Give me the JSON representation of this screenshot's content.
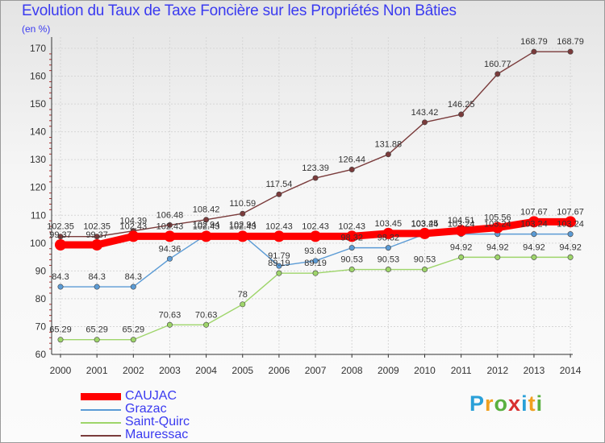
{
  "chart_data": {
    "type": "line",
    "title": "Evolution du Taux de Taxe Foncière sur les Propriétés Non Bâties",
    "ylabel": "(en %)",
    "xlabel": "",
    "ylim": [
      60,
      170
    ],
    "yticks": [
      "60",
      "70",
      "80",
      "90",
      "100",
      "110",
      "120",
      "130",
      "140",
      "150",
      "160",
      "170"
    ],
    "categories": [
      "2000",
      "2001",
      "2002",
      "2003",
      "2004",
      "2005",
      "2006",
      "2007",
      "2008",
      "2009",
      "2010",
      "2011",
      "2012",
      "2013",
      "2014"
    ],
    "grid": true,
    "series": [
      {
        "name": "CAUJAC",
        "color": "#ff0000",
        "values": [
          99.37,
          99.37,
          102.43,
          102.43,
          102.43,
          102.43,
          102.43,
          102.43,
          102.43,
          103.45,
          103.45,
          104.51,
          105.56,
          107.67,
          107.67
        ],
        "labels": [
          "99.37",
          "99.37",
          "102.43",
          "102.43",
          "102.43",
          "102.43",
          "102.43",
          "102.43",
          "102.43",
          "103.45",
          "103.45",
          "104.51",
          "105.56",
          "107.67",
          "107.67"
        ]
      },
      {
        "name": "Grazac",
        "color": "#5b9bd5",
        "values": [
          84.3,
          84.3,
          84.3,
          94.36,
          102.94,
          102.94,
          91.79,
          93.63,
          98.32,
          98.32,
          103.24,
          103.24,
          103.24,
          103.24,
          103.24
        ],
        "labels": [
          "84.3",
          "84.3",
          "84.3",
          "94.36",
          "102.94",
          "102.94",
          "91.79",
          "93.63",
          "98.32",
          "98.32",
          "103.24",
          "103.24",
          "103.24",
          "103.24",
          "103.24"
        ]
      },
      {
        "name": "Saint-Quirc",
        "color": "#9ed56a",
        "values": [
          65.29,
          65.29,
          65.29,
          70.63,
          70.63,
          78,
          89.19,
          89.19,
          90.53,
          90.53,
          90.53,
          94.92,
          94.92,
          94.92,
          94.92
        ],
        "labels": [
          "65.29",
          "65.29",
          "65.29",
          "70.63",
          "70.63",
          "78",
          "89.19",
          "89.19",
          "90.53",
          "90.53",
          "90.53",
          "94.92",
          "94.92",
          "94.92",
          "94.92"
        ]
      },
      {
        "name": "Mauressac",
        "color": "#7a3b3b",
        "values": [
          102.35,
          102.35,
          104.39,
          106.48,
          108.42,
          110.59,
          117.54,
          123.39,
          126.44,
          131.88,
          143.42,
          146.25,
          160.77,
          168.79,
          168.79
        ],
        "labels": [
          "102.35",
          "102.35",
          "104.39",
          "106.48",
          "108.42",
          "110.59",
          "117.54",
          "123.39",
          "126.44",
          "131.88",
          "143.42",
          "146.25",
          "160.77",
          "168.79",
          "168.79"
        ]
      }
    ]
  },
  "brand": {
    "letters": [
      "P",
      "r",
      "o",
      "x",
      "i",
      "t",
      "i"
    ],
    "colors": [
      "#2aa0d8",
      "#f0a020",
      "#5ab040",
      "#d83030",
      "#2aa0d8",
      "#f0a020",
      "#5ab040"
    ]
  }
}
